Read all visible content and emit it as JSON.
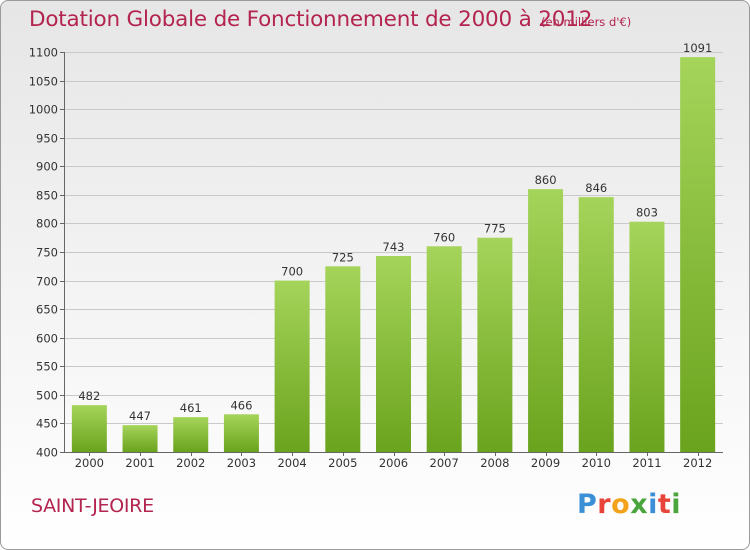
{
  "title": "Dotation Globale de Fonctionnement de 2000 à 2012",
  "subtitle": "(en milliers d'€)",
  "city": "SAINT-JEOIRE",
  "logo": {
    "letters": [
      "P",
      "r",
      "o",
      "x",
      "i",
      "t",
      "i"
    ],
    "colors": [
      "#3b8fd6",
      "#e8443a",
      "#f2a31b",
      "#4aa63c",
      "#3b8fd6",
      "#e8443a",
      "#4aa63c"
    ]
  },
  "colors": {
    "bar_light": "#a5d45a",
    "bar_dark": "#6aa31d",
    "title": "#b3244f"
  },
  "chart_data": {
    "type": "bar",
    "categories": [
      "2000",
      "2001",
      "2002",
      "2003",
      "2004",
      "2005",
      "2006",
      "2007",
      "2008",
      "2009",
      "2010",
      "2011",
      "2012"
    ],
    "values": [
      482,
      447,
      461,
      466,
      700,
      725,
      743,
      760,
      775,
      860,
      846,
      803,
      1091
    ],
    "value_labels": [
      "482",
      "447",
      "461",
      "466",
      "700",
      "725",
      "743",
      "760",
      "775",
      "860",
      "846",
      "803",
      "1091"
    ],
    "ylim": [
      400,
      1100
    ],
    "yticks": [
      400,
      450,
      500,
      550,
      600,
      650,
      700,
      750,
      800,
      850,
      900,
      950,
      1000,
      1050,
      1100
    ],
    "grid": true,
    "xlabel": "",
    "ylabel": ""
  }
}
